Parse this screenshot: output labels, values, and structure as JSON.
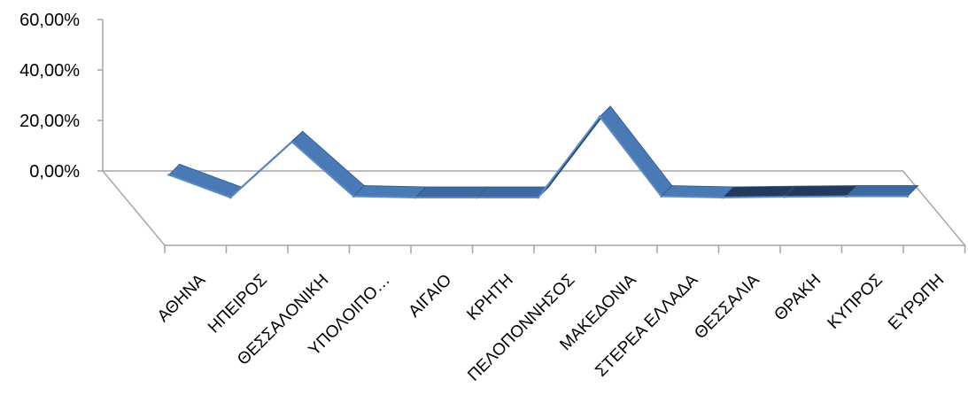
{
  "chart_data": {
    "type": "area",
    "style": "3d-line-ribbon",
    "categories": [
      "ΑΘΗΝΑ",
      "ΗΠΕΙΡΟΣ",
      "ΘΕΣΣΑΛΟΝΙΚΗ",
      "ΥΠΟΛΟΙΠΟ…",
      "ΑΙΓΑΙΟ",
      "ΚΡΗΤΗ",
      "ΠΕΛΟΠΟΝΝΗΣΟΣ",
      "ΜΑΚΕΔΟΝΙΑ",
      "ΣΤΕΡΕΑ ΕΛΛΑΔΑ",
      "ΘΕΣΣΑΛΙΑ",
      "ΘΡΑΚΗ",
      "ΚΥΠΡΟΣ",
      "ΕΥΡΩΠΗ"
    ],
    "series": [
      {
        "values": [
          9.0,
          0.0,
          22.0,
          0.5,
          0.0,
          0.0,
          0.0,
          32.0,
          0.5,
          0.0,
          0.3,
          0.5,
          0.5
        ]
      }
    ],
    "yaxis": {
      "ticks": [
        "0,00%",
        "20,00%",
        "40,00%",
        "60,00%"
      ]
    },
    "ylim": [
      0,
      60
    ],
    "grid": false,
    "legend": "none",
    "colors": {
      "ribbon_top": "#4a7ab5",
      "ribbon_front": "#3d6aa3",
      "ribbon_back": "#233a5c",
      "axis": "#a6a6a6"
    },
    "title": "",
    "xlabel": "",
    "ylabel": ""
  }
}
